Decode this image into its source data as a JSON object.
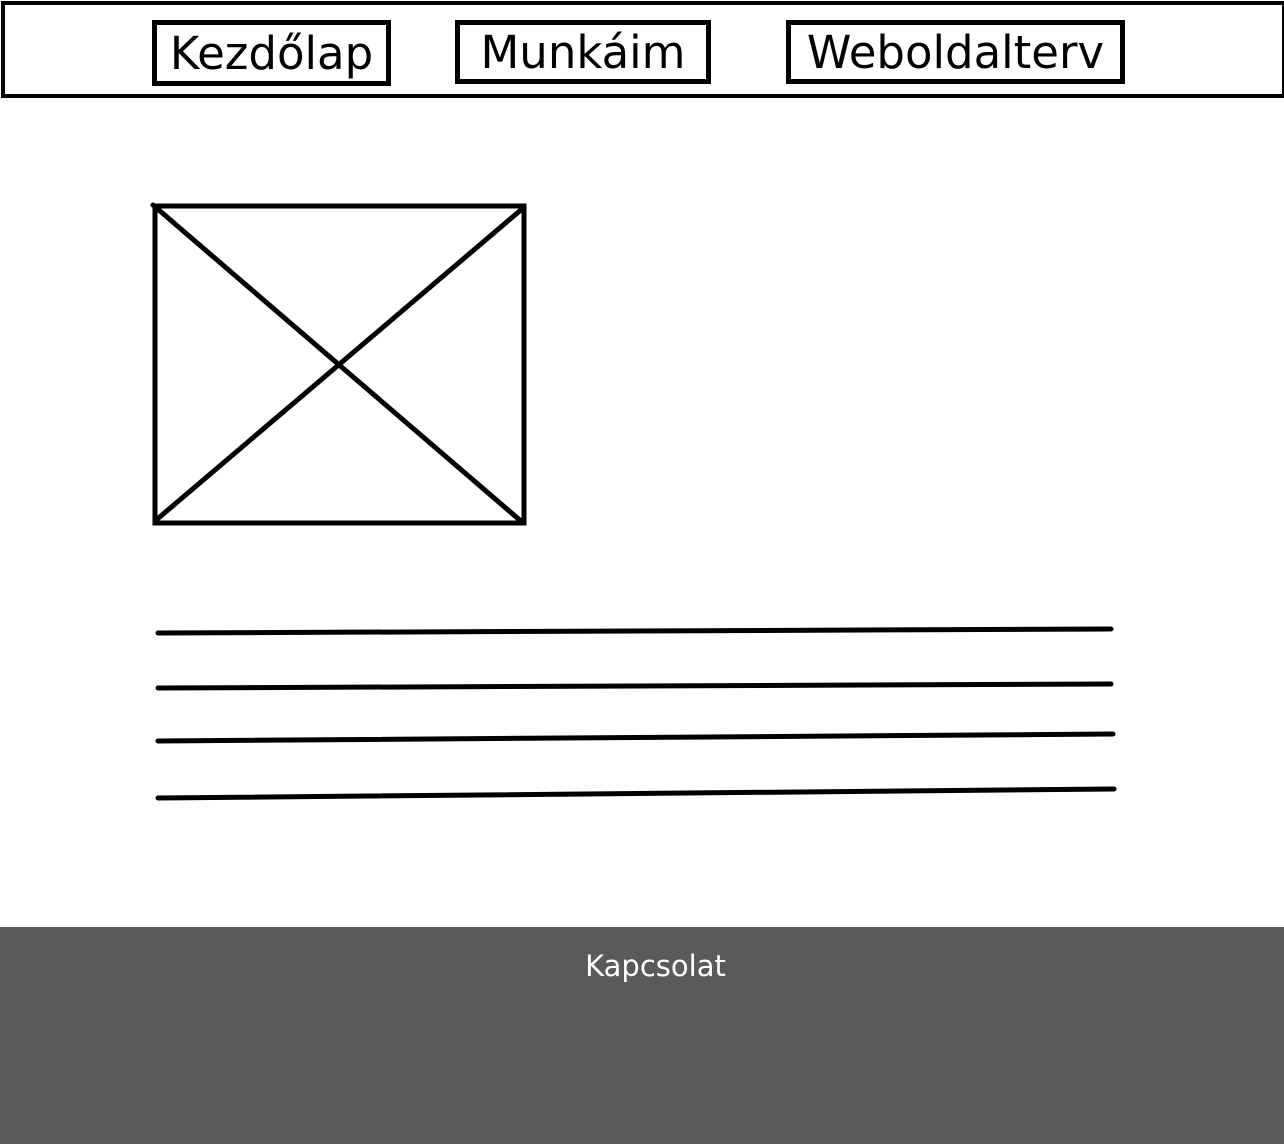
{
  "nav": {
    "home_label": "Kezdőlap",
    "works_label": "Munkáim",
    "design_label": "Weboldalterv"
  },
  "footer": {
    "contact_label": "Kapcsolat",
    "background_color": "#5a5a5a",
    "text_color": "#ffffff"
  },
  "icons": {
    "image_placeholder": "image-placeholder-icon"
  }
}
